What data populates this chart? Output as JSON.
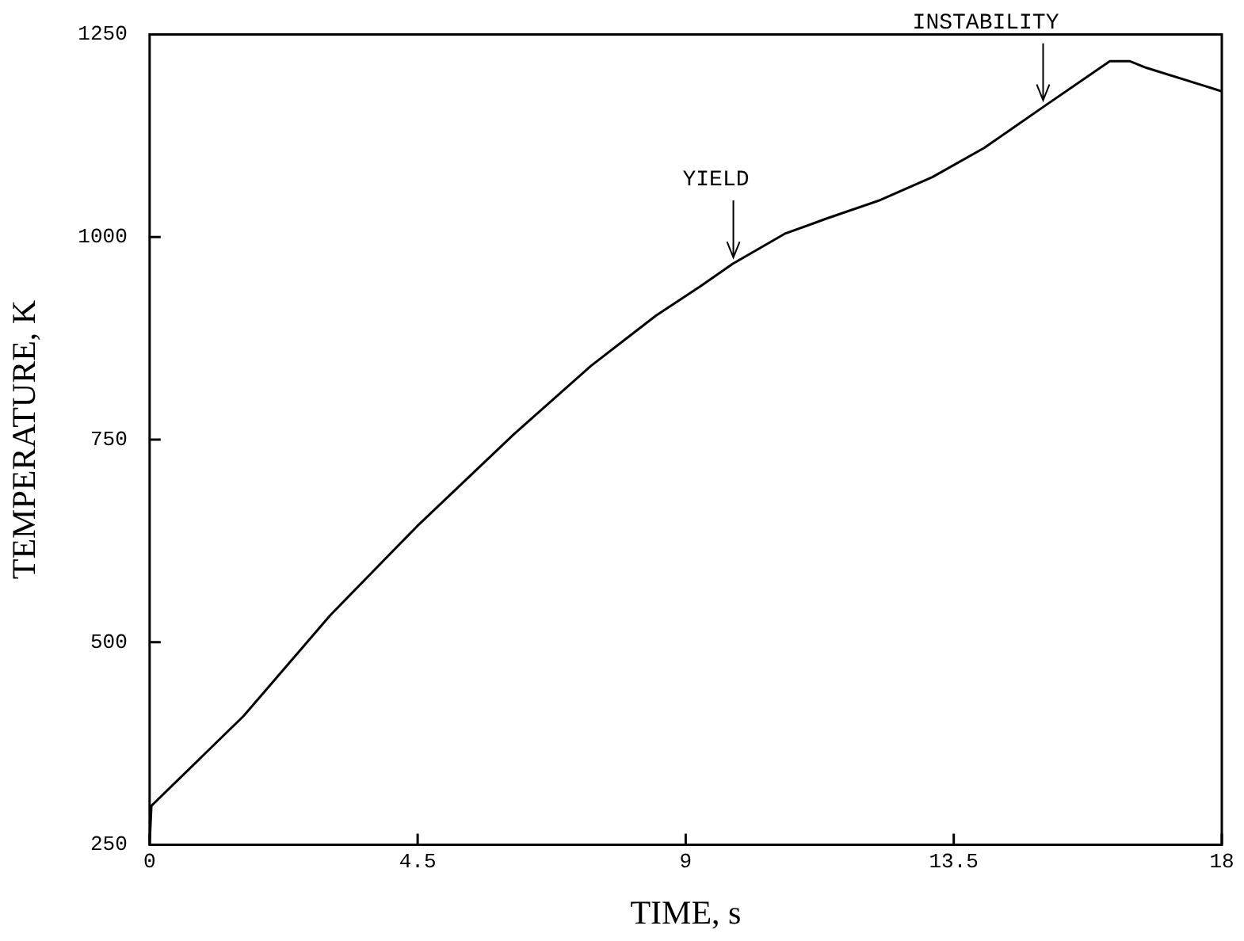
{
  "chart_data": {
    "type": "line",
    "xlabel": "TIME, s",
    "ylabel": "TEMPERATURE, K",
    "xlim": [
      0,
      18
    ],
    "xticks": [
      0,
      4.5,
      9,
      13.5,
      18
    ],
    "ylim": [
      250,
      1250
    ],
    "yticks": [
      250,
      500,
      750,
      1000,
      1250
    ],
    "grid": false,
    "legend": false,
    "marker": "none",
    "line_style": "solid",
    "series": [
      {
        "color": "#000000",
        "x": [
          0,
          0.03,
          1.58,
          3.03,
          4.49,
          6.12,
          7.41,
          8.5,
          9.26,
          9.79,
          10.66,
          11.37,
          12.24,
          13.14,
          14.01,
          15.01,
          16.12,
          16.46,
          16.73,
          18
        ],
        "values": [
          250,
          298,
          409,
          533,
          643,
          757,
          841,
          903,
          940,
          967,
          1004,
          1023,
          1045,
          1074,
          1110,
          1161,
          1217,
          1217,
          1209,
          1180
        ]
      }
    ],
    "annotations": [
      {
        "text": "YIELD",
        "x": 9.8,
        "y": 967
      },
      {
        "text": "INSTABILITY",
        "x": 15,
        "y": 1161
      }
    ]
  }
}
